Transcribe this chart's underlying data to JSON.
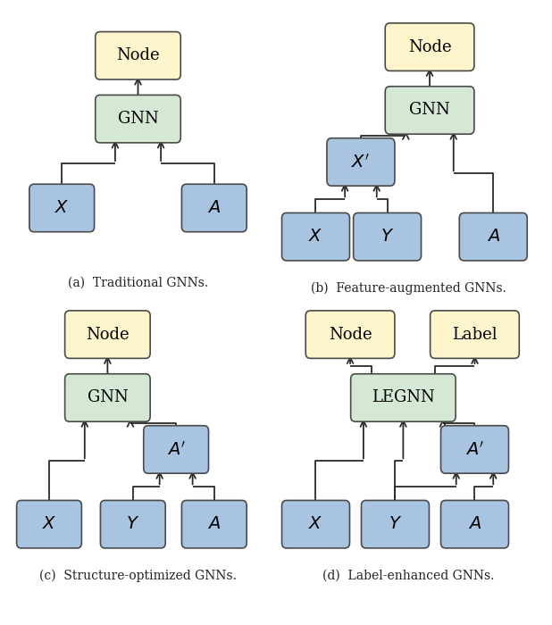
{
  "colors": {
    "node_box": "#FFF5CC",
    "gnn_box": "#D5E8D4",
    "input_box": "#A9C4E0",
    "box_edge": "#4a4a4a",
    "arrow": "#2a2a2a",
    "bg": "#ffffff"
  },
  "captions": [
    "(a)  Traditional GNNs.",
    "(b)  Feature-augmented GNNs.",
    "(c)  Structure-optimized GNNs.",
    "(d)  Label-enhanced GNNs."
  ]
}
